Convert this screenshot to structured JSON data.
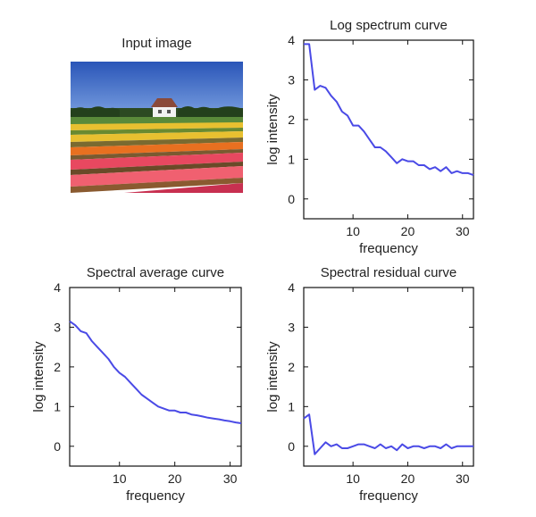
{
  "input_image": {
    "title": "Input image",
    "sky_color": "#2f5fc0",
    "flower_colors": [
      "#e8c030",
      "#e87020",
      "#e84860",
      "#f06070",
      "#c83050"
    ]
  },
  "chart_data": [
    {
      "type": "line",
      "title": "Log spectrum curve",
      "xlabel": "frequency",
      "ylabel": "log intensity",
      "xlim": [
        1,
        32
      ],
      "ylim": [
        -0.5,
        4
      ],
      "xticks": [
        10,
        20,
        30
      ],
      "yticks": [
        0,
        1,
        2,
        3,
        4
      ],
      "color": "#4a4ae6",
      "x": [
        1,
        2,
        3,
        4,
        5,
        6,
        7,
        8,
        9,
        10,
        11,
        12,
        13,
        14,
        15,
        16,
        17,
        18,
        19,
        20,
        21,
        22,
        23,
        24,
        25,
        26,
        27,
        28,
        29,
        30,
        31,
        32
      ],
      "y": [
        3.9,
        3.9,
        2.75,
        2.85,
        2.8,
        2.6,
        2.45,
        2.2,
        2.1,
        1.85,
        1.85,
        1.7,
        1.5,
        1.3,
        1.3,
        1.2,
        1.05,
        0.9,
        1.0,
        0.95,
        0.95,
        0.85,
        0.85,
        0.75,
        0.8,
        0.7,
        0.8,
        0.65,
        0.7,
        0.65,
        0.65,
        0.6
      ]
    },
    {
      "type": "line",
      "title": "Spectral average curve",
      "xlabel": "frequency",
      "ylabel": "log intensity",
      "xlim": [
        1,
        32
      ],
      "ylim": [
        -0.5,
        4
      ],
      "xticks": [
        10,
        20,
        30
      ],
      "yticks": [
        0,
        1,
        2,
        3,
        4
      ],
      "color": "#4a4ae6",
      "x": [
        1,
        2,
        3,
        4,
        5,
        6,
        7,
        8,
        9,
        10,
        11,
        12,
        13,
        14,
        15,
        16,
        17,
        18,
        19,
        20,
        21,
        22,
        23,
        24,
        25,
        26,
        27,
        28,
        29,
        30,
        31,
        32
      ],
      "y": [
        3.15,
        3.05,
        2.9,
        2.85,
        2.65,
        2.5,
        2.35,
        2.2,
        2.0,
        1.85,
        1.75,
        1.6,
        1.45,
        1.3,
        1.2,
        1.1,
        1.0,
        0.95,
        0.9,
        0.9,
        0.85,
        0.85,
        0.8,
        0.78,
        0.75,
        0.72,
        0.7,
        0.68,
        0.65,
        0.63,
        0.6,
        0.58
      ]
    },
    {
      "type": "line",
      "title": "Spectral residual curve",
      "xlabel": "frequency",
      "ylabel": "log intensity",
      "xlim": [
        1,
        32
      ],
      "ylim": [
        -0.5,
        4
      ],
      "xticks": [
        10,
        20,
        30
      ],
      "yticks": [
        0,
        1,
        2,
        3,
        4
      ],
      "color": "#4a4ae6",
      "x": [
        1,
        2,
        3,
        4,
        5,
        6,
        7,
        8,
        9,
        10,
        11,
        12,
        13,
        14,
        15,
        16,
        17,
        18,
        19,
        20,
        21,
        22,
        23,
        24,
        25,
        26,
        27,
        28,
        29,
        30,
        31,
        32
      ],
      "y": [
        0.7,
        0.8,
        -0.2,
        -0.05,
        0.1,
        0.0,
        0.05,
        -0.05,
        -0.05,
        0.0,
        0.05,
        0.05,
        0.0,
        -0.05,
        0.05,
        -0.05,
        0.0,
        -0.1,
        0.05,
        -0.05,
        0.0,
        0.0,
        -0.05,
        0.0,
        0.0,
        -0.05,
        0.05,
        -0.05,
        0.0,
        0.0,
        0.0,
        0.0
      ]
    }
  ]
}
